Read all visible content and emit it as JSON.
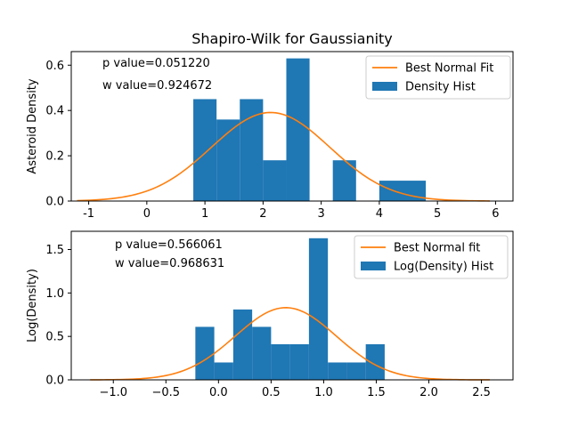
{
  "chart_data": [
    {
      "type": "bar",
      "title": "Shapiro-Wilk for Gaussianity",
      "xlabel": "",
      "ylabel": "Asteroid Density",
      "xlim": [
        -1.3,
        6.3
      ],
      "ylim": [
        0,
        0.66
      ],
      "xticks": [
        -1,
        0,
        1,
        2,
        3,
        4,
        5,
        6
      ],
      "yticks": [
        0.0,
        0.2,
        0.4,
        0.6
      ],
      "ytick_labels": [
        "0.0",
        "0.2",
        "0.4",
        "0.6"
      ],
      "annotations": [
        "p value=0.051220",
        "w value=0.924672"
      ],
      "legend": {
        "position": "top-right",
        "entries": [
          "Best Normal Fit",
          "Density Hist"
        ]
      },
      "colors": {
        "hist": "#1f77b4",
        "fit": "#ff7f0e"
      },
      "series": [
        {
          "name": "Density Hist",
          "kind": "histogram",
          "bins": [
            {
              "start": 0.8,
              "end": 1.2,
              "value": 0.45
            },
            {
              "start": 1.2,
              "end": 1.6,
              "value": 0.36
            },
            {
              "start": 1.6,
              "end": 2.0,
              "value": 0.45
            },
            {
              "start": 2.0,
              "end": 2.4,
              "value": 0.18
            },
            {
              "start": 2.4,
              "end": 2.8,
              "value": 0.63
            },
            {
              "start": 2.8,
              "end": 3.2,
              "value": 0.0
            },
            {
              "start": 3.2,
              "end": 3.6,
              "value": 0.18
            },
            {
              "start": 3.6,
              "end": 4.0,
              "value": 0.0
            },
            {
              "start": 4.0,
              "end": 4.4,
              "value": 0.09
            },
            {
              "start": 4.4,
              "end": 4.8,
              "value": 0.09
            }
          ]
        },
        {
          "name": "Best Normal Fit",
          "kind": "normal_curve",
          "mean": 2.13,
          "std": 1.02,
          "x_range": [
            -1.2,
            5.9
          ]
        }
      ]
    },
    {
      "type": "bar",
      "title": "",
      "xlabel": "",
      "ylabel": "Log(Density)",
      "xlim": [
        -1.4,
        2.8
      ],
      "ylim": [
        0,
        1.71
      ],
      "xticks": [
        -1.0,
        -0.5,
        0.0,
        0.5,
        1.0,
        1.5,
        2.0,
        2.5
      ],
      "xtick_labels": [
        "−1.0",
        "−0.5",
        "0.0",
        "0.5",
        "1.0",
        "1.5",
        "2.0",
        "2.5"
      ],
      "yticks": [
        0.0,
        0.5,
        1.0,
        1.5
      ],
      "ytick_labels": [
        "0.0",
        "0.5",
        "1.0",
        "1.5"
      ],
      "annotations": [
        "p value=0.566061",
        "w value=0.968631"
      ],
      "legend": {
        "position": "top-right",
        "entries": [
          "Best Normal fit",
          "Log(Density) Hist"
        ]
      },
      "colors": {
        "hist": "#1f77b4",
        "fit": "#ff7f0e"
      },
      "series": [
        {
          "name": "Log(Density) Hist",
          "kind": "histogram",
          "bins": [
            {
              "start": -0.22,
              "end": -0.04,
              "value": 0.61
            },
            {
              "start": -0.04,
              "end": 0.14,
              "value": 0.2
            },
            {
              "start": 0.14,
              "end": 0.32,
              "value": 0.81
            },
            {
              "start": 0.32,
              "end": 0.5,
              "value": 0.61
            },
            {
              "start": 0.5,
              "end": 0.68,
              "value": 0.41
            },
            {
              "start": 0.68,
              "end": 0.86,
              "value": 0.41
            },
            {
              "start": 0.86,
              "end": 1.04,
              "value": 1.63
            },
            {
              "start": 1.04,
              "end": 1.22,
              "value": 0.2
            },
            {
              "start": 1.22,
              "end": 1.4,
              "value": 0.2
            },
            {
              "start": 1.4,
              "end": 1.58,
              "value": 0.41
            }
          ]
        },
        {
          "name": "Best Normal fit",
          "kind": "normal_curve",
          "mean": 0.64,
          "std": 0.48,
          "x_range": [
            -1.22,
            2.58
          ]
        }
      ]
    }
  ]
}
